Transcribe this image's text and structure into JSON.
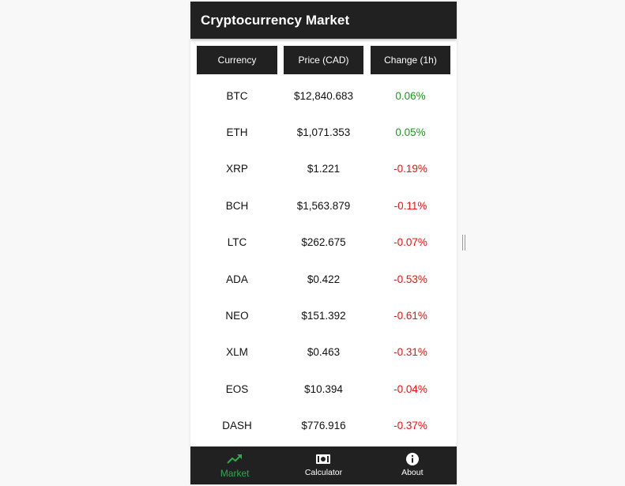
{
  "app": {
    "title": "Cryptocurrency Market"
  },
  "table": {
    "headers": [
      "Currency",
      "Price (CAD)",
      "Change (1h)"
    ],
    "rows": [
      {
        "currency": "BTC",
        "price": "$12,840.683",
        "change": "0.06%",
        "direction": "up"
      },
      {
        "currency": "ETH",
        "price": "$1,071.353",
        "change": "0.05%",
        "direction": "up"
      },
      {
        "currency": "XRP",
        "price": "$1.221",
        "change": "-0.19%",
        "direction": "down"
      },
      {
        "currency": "BCH",
        "price": "$1,563.879",
        "change": "-0.11%",
        "direction": "down"
      },
      {
        "currency": "LTC",
        "price": "$262.675",
        "change": "-0.07%",
        "direction": "down"
      },
      {
        "currency": "ADA",
        "price": "$0.422",
        "change": "-0.53%",
        "direction": "down"
      },
      {
        "currency": "NEO",
        "price": "$151.392",
        "change": "-0.61%",
        "direction": "down"
      },
      {
        "currency": "XLM",
        "price": "$0.463",
        "change": "-0.31%",
        "direction": "down"
      },
      {
        "currency": "EOS",
        "price": "$10.394",
        "change": "-0.04%",
        "direction": "down"
      },
      {
        "currency": "DASH",
        "price": "$776.916",
        "change": "-0.37%",
        "direction": "down"
      }
    ]
  },
  "tabs": [
    {
      "label": "Market",
      "icon": "trending-up-icon",
      "active": true
    },
    {
      "label": "Calculator",
      "icon": "money-icon",
      "active": false
    },
    {
      "label": "About",
      "icon": "info-icon",
      "active": false
    }
  ],
  "colors": {
    "bar": "#212121",
    "positive": "#1a9a1a",
    "negative": "#ee1111",
    "active_tab": "#2fa84f"
  }
}
